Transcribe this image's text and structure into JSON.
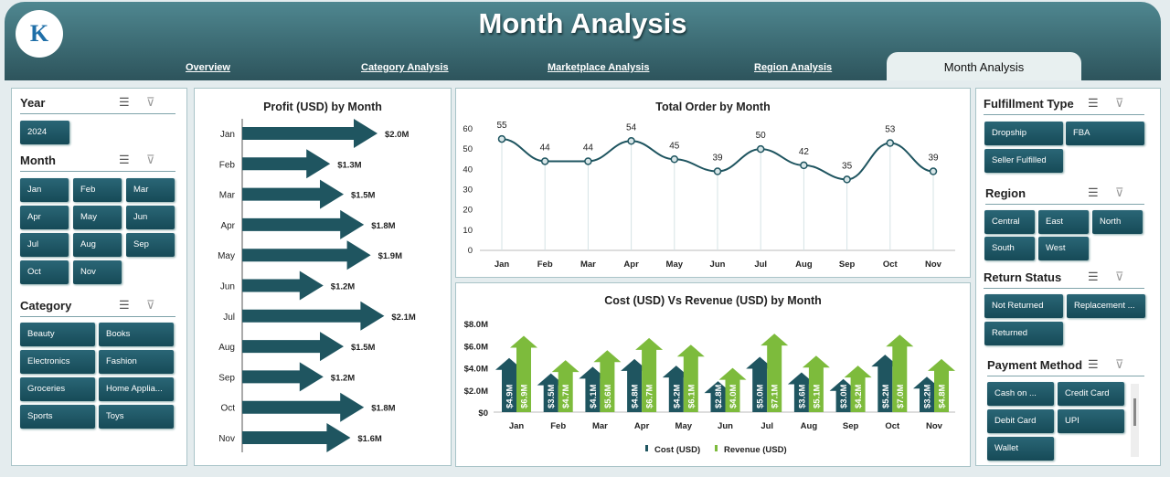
{
  "header": {
    "title": "Month Analysis",
    "tabs": [
      "Overview",
      "Category Analysis",
      "Marketplace Analysis",
      "Region Analysis",
      "Month Analysis"
    ],
    "active_tab": "Month Analysis"
  },
  "left": {
    "year": {
      "label": "Year",
      "items": [
        "2024"
      ]
    },
    "month": {
      "label": "Month",
      "items": [
        "Jan",
        "Feb",
        "Mar",
        "Apr",
        "May",
        "Jun",
        "Jul",
        "Aug",
        "Sep",
        "Oct",
        "Nov"
      ]
    },
    "category": {
      "label": "Category",
      "items": [
        "Beauty",
        "Books",
        "Electronics",
        "Fashion",
        "Groceries",
        "Home Applia...",
        "Sports",
        "Toys"
      ]
    }
  },
  "right": {
    "fulfillment": {
      "label": "Fulfillment Type",
      "items": [
        "Dropship",
        "FBA",
        "Seller Fulfilled"
      ]
    },
    "region": {
      "label": "Region",
      "items": [
        "Central",
        "East",
        "North",
        "South",
        "West"
      ]
    },
    "return": {
      "label": "Return Status",
      "items": [
        "Not Returned",
        "Replacement ...",
        "Returned"
      ]
    },
    "payment": {
      "label": "Payment Method",
      "items": [
        "Cash on ...",
        "Credit Card",
        "Debit Card",
        "UPI",
        "Wallet"
      ]
    }
  },
  "chart_data": [
    {
      "type": "bar",
      "title": "Profit (USD) by Month",
      "categories": [
        "Jan",
        "Feb",
        "Mar",
        "Apr",
        "May",
        "Jun",
        "Jul",
        "Aug",
        "Sep",
        "Oct",
        "Nov"
      ],
      "values": [
        2.0,
        1.3,
        1.5,
        1.8,
        1.9,
        1.2,
        2.1,
        1.5,
        1.2,
        1.8,
        1.6
      ],
      "labels": [
        "$2.0M",
        "$1.3M",
        "$1.5M",
        "$1.8M",
        "$1.9M",
        "$1.2M",
        "$2.1M",
        "$1.5M",
        "$1.2M",
        "$1.8M",
        "$1.6M"
      ],
      "orientation": "horizontal",
      "color": "#1f5560"
    },
    {
      "type": "line",
      "title": "Total Order by Month",
      "categories": [
        "Jan",
        "Feb",
        "Mar",
        "Apr",
        "May",
        "Jun",
        "Jul",
        "Aug",
        "Sep",
        "Oct",
        "Nov"
      ],
      "values": [
        55,
        44,
        44,
        54,
        45,
        39,
        50,
        42,
        35,
        53,
        39
      ],
      "ylim": [
        0,
        60
      ],
      "yticks": [
        "0",
        "10",
        "20",
        "30",
        "40",
        "50",
        "60"
      ],
      "color": "#1f5560"
    },
    {
      "type": "bar",
      "title": "Cost (USD) Vs Revenue (USD) by Month",
      "categories": [
        "Jan",
        "Feb",
        "Mar",
        "Apr",
        "May",
        "Jun",
        "Jul",
        "Aug",
        "Sep",
        "Oct",
        "Nov"
      ],
      "ylim": [
        0,
        8
      ],
      "yticks": [
        "$0",
        "$2.0M",
        "$4.0M",
        "$6.0M",
        "$8.0M"
      ],
      "series": [
        {
          "name": "Cost (USD)",
          "color": "#1f5560",
          "values": [
            4.9,
            3.5,
            4.1,
            4.8,
            4.2,
            2.8,
            5.0,
            3.6,
            3.0,
            5.2,
            3.2
          ],
          "labels": [
            "$4.9M",
            "$3.5M",
            "$4.1M",
            "$4.8M",
            "$4.2M",
            "$2.8M",
            "$5.0M",
            "$3.6M",
            "$3.0M",
            "$5.2M",
            "$3.2M"
          ]
        },
        {
          "name": "Revenue (USD)",
          "color": "#7dbb3c",
          "values": [
            6.9,
            4.7,
            5.6,
            6.7,
            6.1,
            4.0,
            7.1,
            5.1,
            4.2,
            7.0,
            4.8
          ],
          "labels": [
            "$6.9M",
            "$4.7M",
            "$5.6M",
            "$6.7M",
            "$6.1M",
            "$4.0M",
            "$7.1M",
            "$5.1M",
            "$4.2M",
            "$7.0M",
            "$4.8M"
          ]
        }
      ]
    }
  ]
}
